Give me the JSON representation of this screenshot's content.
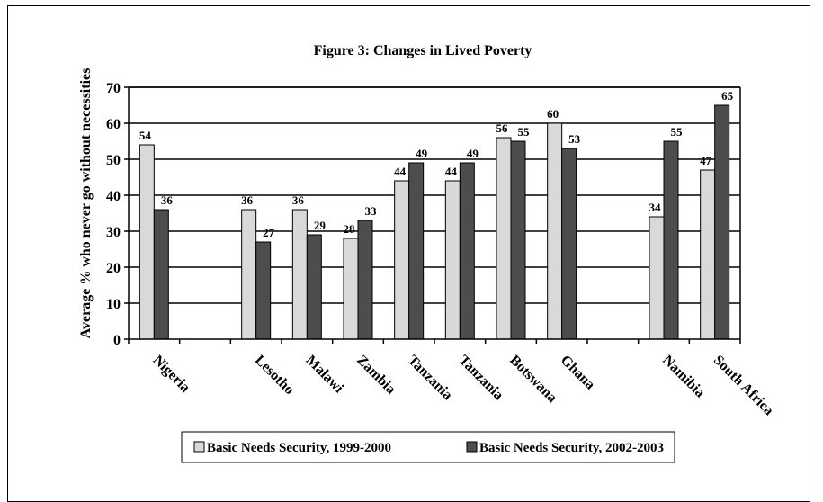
{
  "chart_data": {
    "type": "bar",
    "title": "Figure 3: Changes in Lived Poverty",
    "xlabel": "",
    "ylabel": "Average % who never go without necessities",
    "ylim": [
      0,
      70
    ],
    "yticks": [
      0,
      10,
      20,
      30,
      40,
      50,
      60,
      70
    ],
    "grid": true,
    "legend_position": "bottom",
    "categories": [
      "Nigeria",
      "",
      "Lesotho",
      "Malawi",
      "Zambia",
      "Tanzania",
      "Tanzania",
      "Botswana",
      "Ghana",
      "",
      "Namibia",
      "South Africa"
    ],
    "series": [
      {
        "name": "Basic Needs Security, 1999-2000",
        "color": "#d9d9d9",
        "values": [
          54,
          null,
          36,
          36,
          28,
          44,
          44,
          56,
          60,
          null,
          34,
          47
        ]
      },
      {
        "name": "Basic Needs Security, 2002-2003",
        "color": "#4d4d4d",
        "values": [
          36,
          null,
          27,
          29,
          33,
          49,
          49,
          55,
          53,
          null,
          55,
          65
        ]
      }
    ]
  }
}
